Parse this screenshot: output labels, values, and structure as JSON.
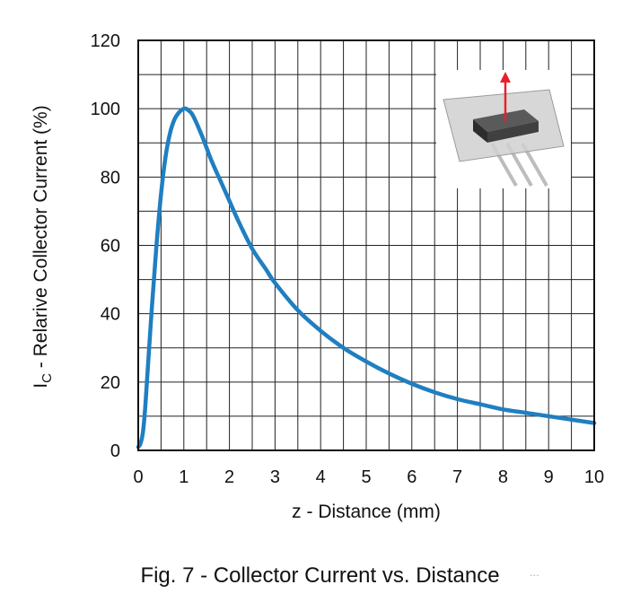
{
  "caption": "Fig. 7 - Collector Current vs. Distance",
  "watermark": "...",
  "chart_data": {
    "type": "line",
    "xlabel": "z - Distance (mm)",
    "ylabel_main": "I",
    "ylabel_sub": "C",
    "ylabel_rest": " - Relarive Collector Current (%)",
    "xlim": [
      0,
      10
    ],
    "ylim": [
      0,
      120
    ],
    "xticks": [
      0,
      1,
      2,
      3,
      4,
      5,
      6,
      7,
      8,
      9,
      10
    ],
    "yticks": [
      0,
      20,
      40,
      60,
      80,
      100,
      120
    ],
    "xgrid_step": 0.5,
    "grid": true,
    "line_color": "#1f7fc1",
    "series": [
      {
        "x": [
          0,
          0.05,
          0.1,
          0.15,
          0.2,
          0.3,
          0.4,
          0.5,
          0.6,
          0.7,
          0.8,
          0.9,
          1.0,
          1.05,
          1.1,
          1.2,
          1.4,
          1.6,
          1.8,
          2.0,
          2.2,
          2.5,
          2.8,
          3.0,
          3.5,
          4.0,
          4.5,
          5.0,
          5.5,
          6.0,
          6.5,
          7.0,
          7.5,
          8.0,
          8.5,
          9.0,
          9.5,
          10.0
        ],
        "y": [
          1,
          2,
          5,
          12,
          22,
          42,
          60,
          75,
          86,
          93,
          97,
          99,
          100,
          100,
          99.5,
          98,
          92,
          85,
          79,
          73,
          67,
          59,
          53,
          49,
          41,
          35,
          30,
          26,
          22.5,
          19.5,
          17,
          15,
          13.5,
          12,
          11,
          10,
          9,
          8
        ]
      }
    ]
  }
}
